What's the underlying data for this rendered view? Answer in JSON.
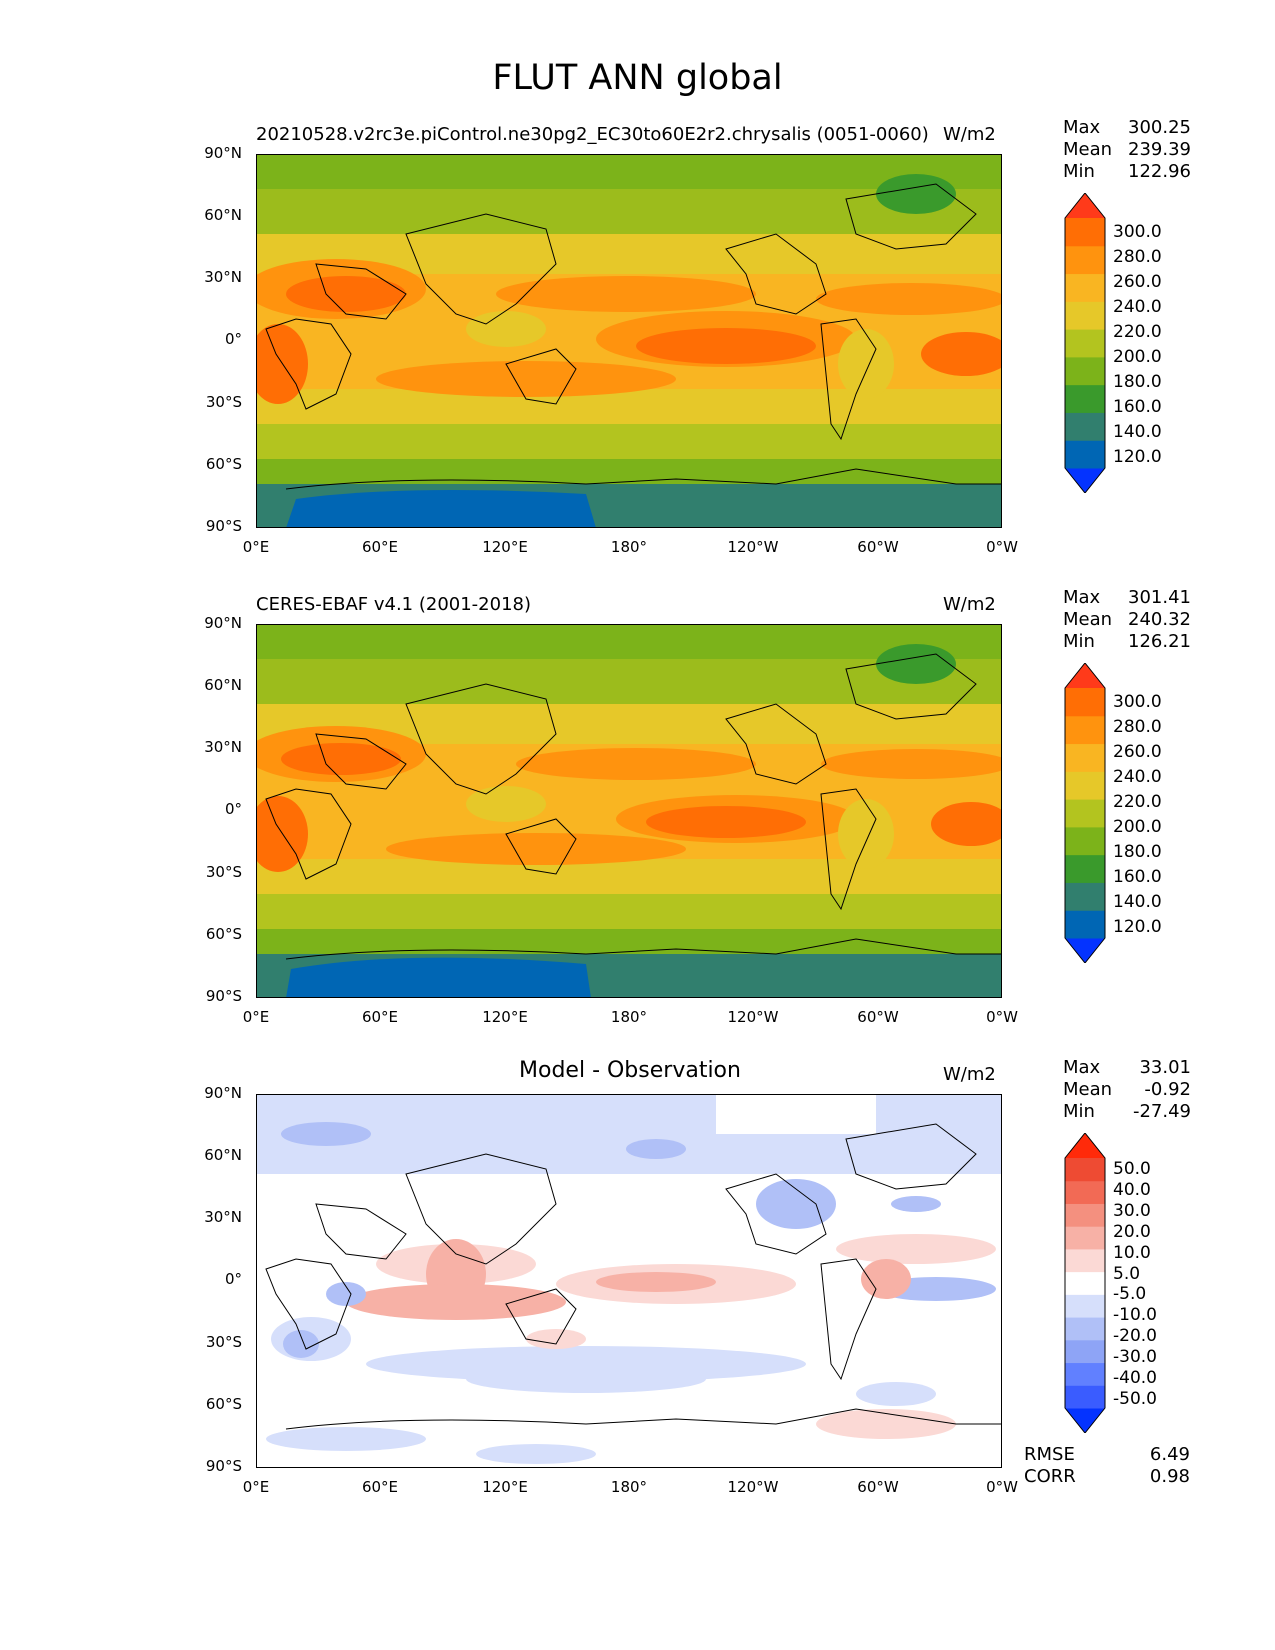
{
  "title": "FLUT ANN global",
  "panels": [
    {
      "id": "model",
      "subtitle": "20210528.v2rc3e.piControl.ne30pg2_EC30to60E2r2.chrysalis (0051-0060)",
      "center_title": "",
      "units": "W/m2",
      "stats": {
        "max_label": "Max",
        "max": "300.25",
        "mean_label": "Mean",
        "mean": "239.39",
        "min_label": "Min",
        "min": "122.96"
      },
      "colorbar": {
        "colors": [
          "#0433ff",
          "#0066b4",
          "#317f6e",
          "#3a9a2c",
          "#7cb31a",
          "#b3c41f",
          "#e6c829",
          "#f9b522",
          "#ff930e",
          "#ff6e05",
          "#ff3a1a"
        ],
        "labels": [
          "300.0",
          "280.0",
          "260.0",
          "240.0",
          "220.0",
          "200.0",
          "180.0",
          "160.0",
          "140.0",
          "120.0"
        ]
      }
    },
    {
      "id": "obs",
      "subtitle": "CERES-EBAF v4.1 (2001-2018)",
      "center_title": "",
      "units": "W/m2",
      "stats": {
        "max_label": "Max",
        "max": "301.41",
        "mean_label": "Mean",
        "mean": "240.32",
        "min_label": "Min",
        "min": "126.21"
      },
      "colorbar": {
        "colors": [
          "#0433ff",
          "#0066b4",
          "#317f6e",
          "#3a9a2c",
          "#7cb31a",
          "#b3c41f",
          "#e6c829",
          "#f9b522",
          "#ff930e",
          "#ff6e05",
          "#ff3a1a"
        ],
        "labels": [
          "300.0",
          "280.0",
          "260.0",
          "240.0",
          "220.0",
          "200.0",
          "180.0",
          "160.0",
          "140.0",
          "120.0"
        ]
      }
    },
    {
      "id": "diff",
      "subtitle": "",
      "center_title": "Model - Observation",
      "units": "W/m2",
      "stats": {
        "max_label": "Max",
        "max": "33.01",
        "mean_label": "Mean",
        "mean": "-0.92",
        "min_label": "Min",
        "min": "-27.49"
      },
      "colorbar": {
        "colors": [
          "#0433ff",
          "#3a5cff",
          "#6180ff",
          "#8ea4f6",
          "#b0c0f7",
          "#d6dffb",
          "#ffffff",
          "#fbd9d5",
          "#f7b1a6",
          "#f4907f",
          "#f26a55",
          "#ee4b33",
          "#ff2a0a"
        ],
        "labels": [
          "50.0",
          "40.0",
          "30.0",
          "20.0",
          "10.0",
          "5.0",
          "-5.0",
          "-10.0",
          "-20.0",
          "-30.0",
          "-40.0",
          "-50.0"
        ]
      },
      "rmse_label": "RMSE",
      "rmse": "6.49",
      "corr_label": "CORR",
      "corr": "0.98"
    }
  ],
  "axes": {
    "lat_ticks": [
      "90°N",
      "60°N",
      "30°N",
      "0°",
      "30°S",
      "60°S",
      "90°S"
    ],
    "lon_ticks": [
      "0°E",
      "60°E",
      "120°E",
      "180°",
      "120°W",
      "60°W",
      "0°W"
    ]
  }
}
